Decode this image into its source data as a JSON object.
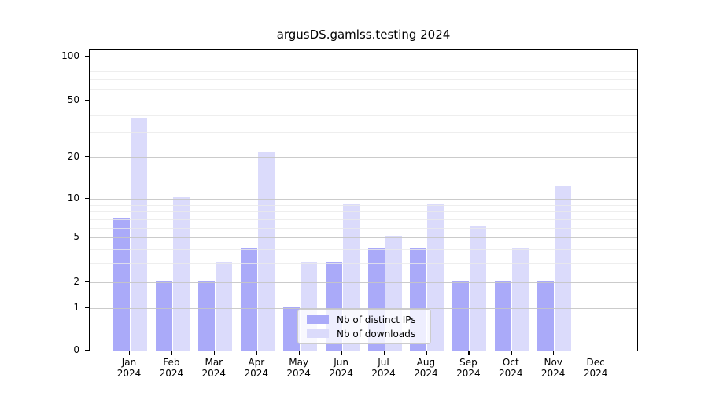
{
  "chart_data": {
    "type": "bar",
    "title": "argusDS.gamlss.testing 2024",
    "categories": [
      "Jan",
      "Feb",
      "Mar",
      "Apr",
      "May",
      "Jun",
      "Jul",
      "Aug",
      "Sep",
      "Oct",
      "Nov",
      "Dec"
    ],
    "x_tick_year_label": "2024",
    "series": [
      {
        "name": "Nb of distinct IPs",
        "color": "#aaaaf9",
        "values": [
          7,
          2,
          2,
          4,
          1,
          3,
          4,
          4,
          2,
          2,
          2,
          0
        ]
      },
      {
        "name": "Nb of downloads",
        "color": "#dbdbfb",
        "values": [
          37,
          10,
          3,
          21,
          3,
          9,
          5,
          9,
          6,
          4,
          12,
          0
        ]
      }
    ],
    "y_ticks": [
      0,
      1,
      2,
      5,
      10,
      20,
      50,
      100
    ],
    "y_tick_labels": [
      "0",
      "1",
      "2",
      "5",
      "10",
      "20",
      "50",
      "100"
    ],
    "y_minor_gridlines": [
      3,
      4,
      6,
      7,
      8,
      9,
      30,
      40,
      60,
      70,
      80,
      90
    ],
    "ylim": [
      0,
      112
    ],
    "scale": "log1p",
    "grid": true,
    "grid_on_top": true,
    "legend_position": "lower center",
    "colors": {
      "distinct_ips": "#aaaaf9",
      "downloads": "#dbdbfb",
      "major_grid": "#c5c5c5",
      "minor_grid": "#eaeaea",
      "axis": "#000000"
    }
  }
}
